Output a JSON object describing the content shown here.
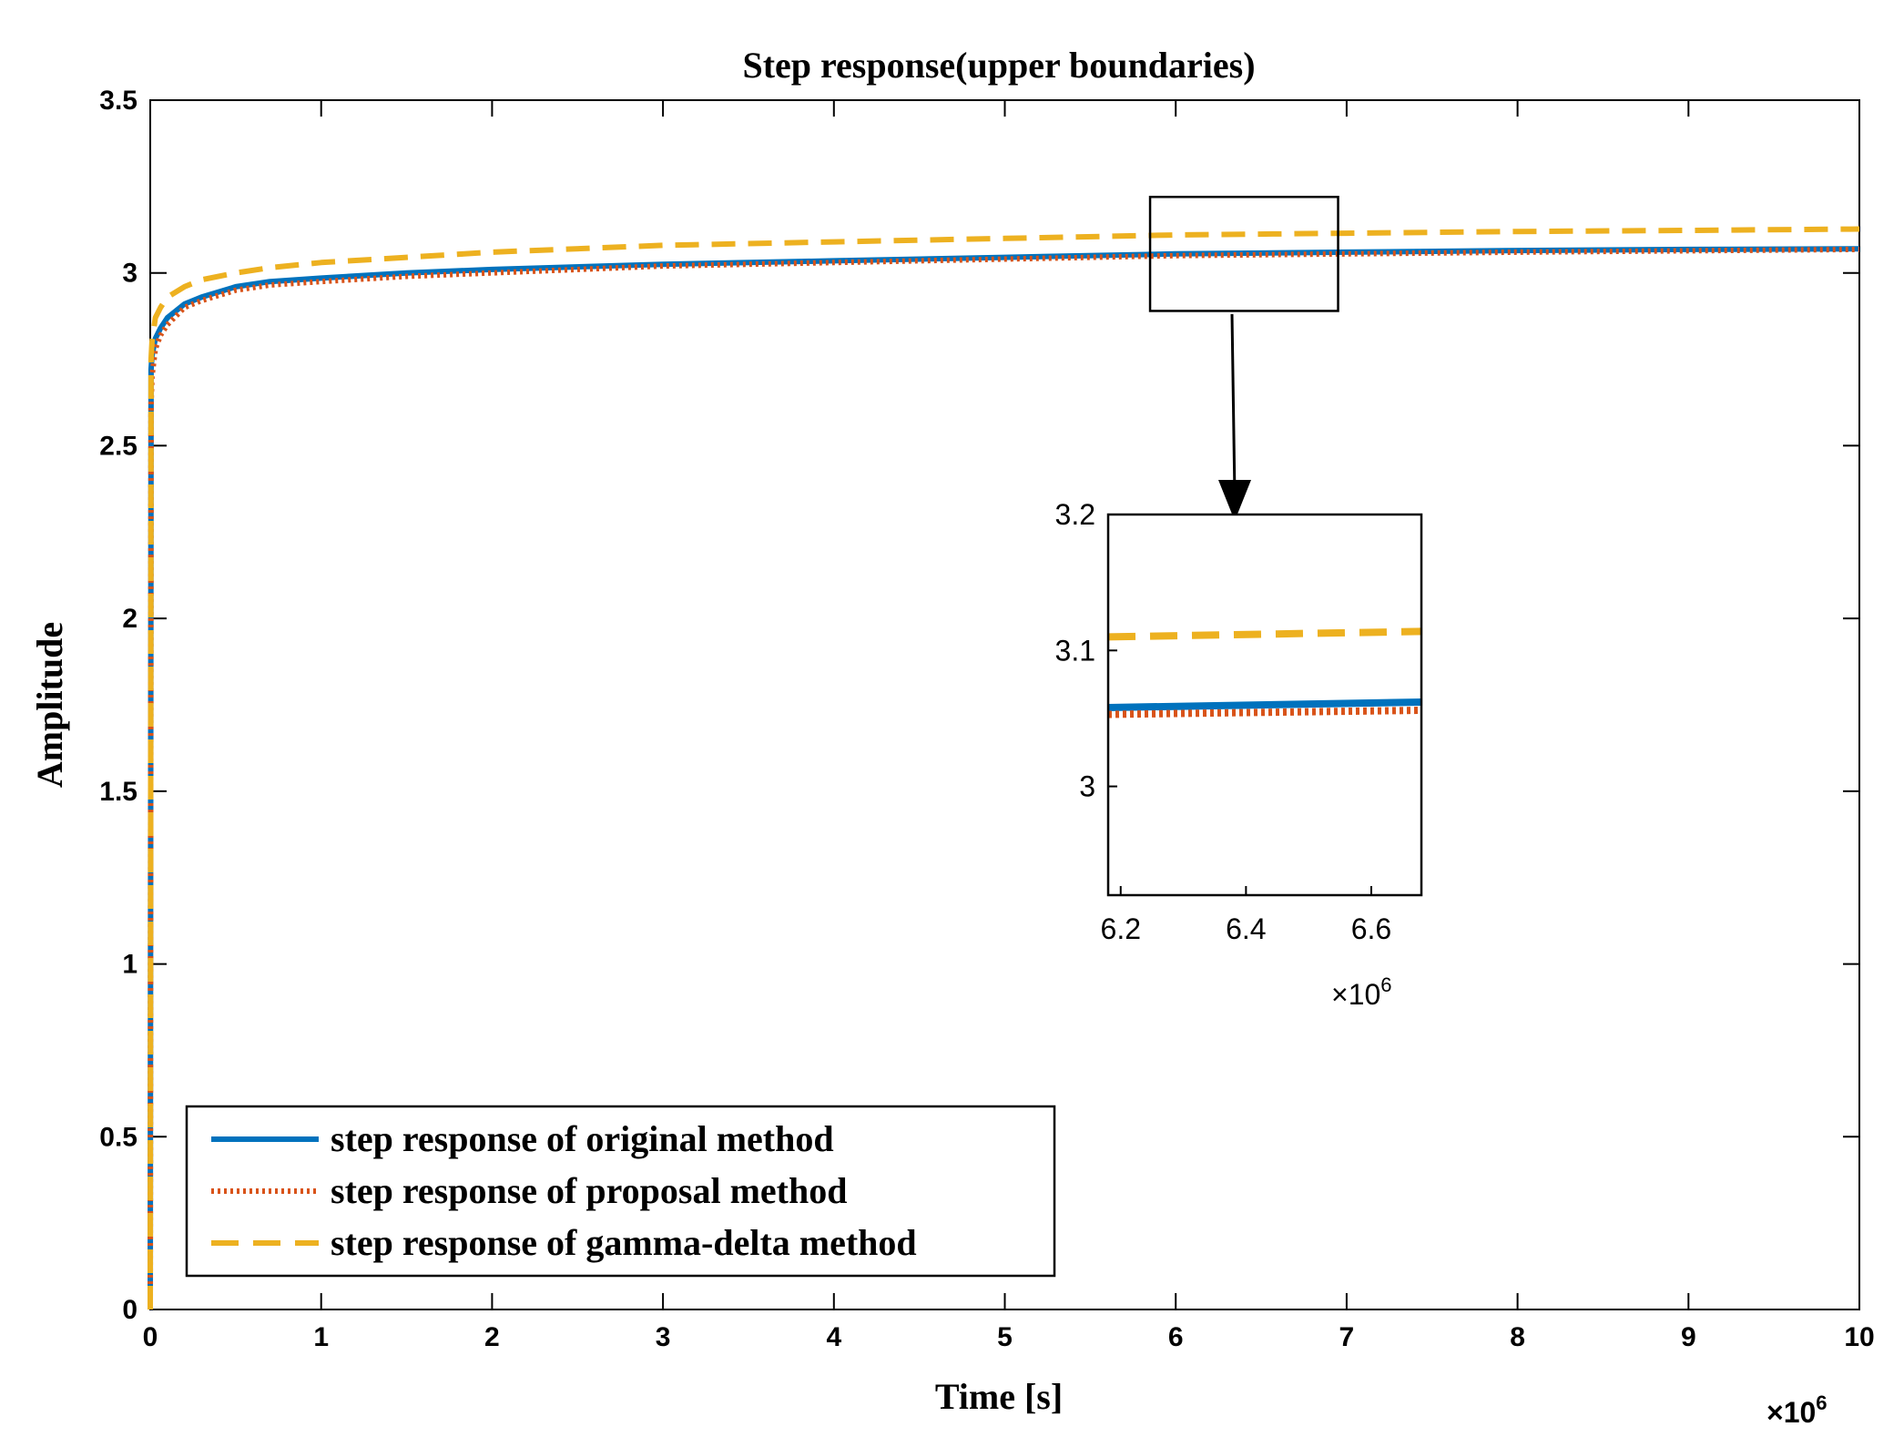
{
  "chart_data": {
    "type": "line",
    "title": "Step response(upper boundaries)",
    "xlabel": "Time [s]",
    "ylabel": "Amplitude",
    "x_exponent_label": "×10",
    "x_exponent_power": "6",
    "xlim": [
      0,
      10
    ],
    "ylim": [
      0,
      3.5
    ],
    "xticks": [
      0,
      1,
      2,
      3,
      4,
      5,
      6,
      7,
      8,
      9,
      10
    ],
    "xtick_labels": [
      "0",
      "1",
      "2",
      "3",
      "4",
      "5",
      "6",
      "7",
      "8",
      "9",
      "10"
    ],
    "yticks": [
      0,
      0.5,
      1,
      1.5,
      2,
      2.5,
      3,
      3.5
    ],
    "ytick_labels": [
      "0",
      "0.5",
      "1",
      "1.5",
      "2",
      "2.5",
      "3",
      "3.5"
    ],
    "grid": false,
    "legend_position": "bottom-left",
    "series": [
      {
        "name": "step response of original method",
        "color": "#0072BD",
        "style": "solid",
        "x": [
          0,
          0.005,
          0.01,
          0.03,
          0.06,
          0.1,
          0.2,
          0.3,
          0.5,
          0.7,
          1,
          1.5,
          2,
          3,
          4,
          5,
          6,
          7,
          8,
          9,
          10
        ],
        "values": [
          0,
          2.72,
          2.76,
          2.81,
          2.84,
          2.87,
          2.91,
          2.93,
          2.96,
          2.975,
          2.985,
          3.0,
          3.01,
          3.025,
          3.035,
          3.045,
          3.055,
          3.06,
          3.065,
          3.068,
          3.07
        ]
      },
      {
        "name": "step response of proposal method",
        "color": "#D95319",
        "style": "dotted",
        "x": [
          0,
          0.005,
          0.01,
          0.03,
          0.06,
          0.1,
          0.2,
          0.3,
          0.5,
          0.7,
          1,
          1.5,
          2,
          3,
          4,
          5,
          6,
          7,
          8,
          9,
          10
        ],
        "values": [
          0,
          2.62,
          2.7,
          2.78,
          2.82,
          2.85,
          2.9,
          2.92,
          2.95,
          2.965,
          2.975,
          2.99,
          3.0,
          3.02,
          3.03,
          3.04,
          3.05,
          3.055,
          3.06,
          3.064,
          3.068
        ]
      },
      {
        "name": "step response of gamma-delta method",
        "color": "#EDB120",
        "style": "dashed",
        "x": [
          0,
          0.005,
          0.01,
          0.03,
          0.06,
          0.1,
          0.2,
          0.3,
          0.5,
          0.7,
          1,
          1.5,
          2,
          3,
          4,
          5,
          6,
          7,
          8,
          9,
          10
        ],
        "values": [
          0,
          2.75,
          2.8,
          2.87,
          2.9,
          2.93,
          2.96,
          2.98,
          3.0,
          3.015,
          3.03,
          3.045,
          3.06,
          3.08,
          3.09,
          3.1,
          3.11,
          3.115,
          3.12,
          3.123,
          3.127
        ]
      }
    ],
    "inset": {
      "xlim": [
        6.18,
        6.68
      ],
      "ylim": [
        2.92,
        3.2
      ],
      "xticks": [
        6.2,
        6.4,
        6.6
      ],
      "xtick_labels": [
        "6.2",
        "6.4",
        "6.6"
      ],
      "yticks": [
        3.0,
        3.1,
        3.2
      ],
      "ytick_labels": [
        "3",
        "3.1",
        "3.2"
      ],
      "x_exponent_label": "×10",
      "x_exponent_power": "6",
      "zoom_region_x": [
        5.85,
        6.95
      ],
      "zoom_region_y": [
        2.89,
        3.22
      ],
      "series_values": [
        {
          "name": "step response of original method",
          "x": [
            6.18,
            6.68
          ],
          "values": [
            3.058,
            3.062
          ]
        },
        {
          "name": "step response of proposal method",
          "x": [
            6.18,
            6.68
          ],
          "values": [
            3.053,
            3.056
          ]
        },
        {
          "name": "step response of gamma-delta method",
          "x": [
            6.18,
            6.68
          ],
          "values": [
            3.11,
            3.114
          ]
        }
      ]
    }
  }
}
